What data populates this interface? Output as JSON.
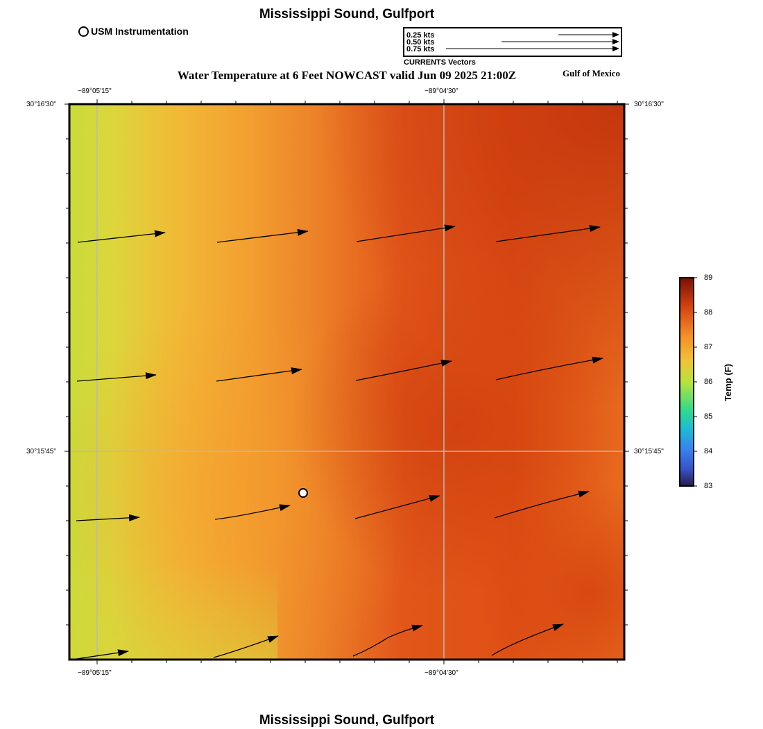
{
  "header": {
    "title": "Mississippi Sound, Gulfport",
    "usm_legend_label": "USM Instrumentation",
    "region_label": "Gulf of Mexico",
    "main_title": "Water Temperature at 6 Feet NOWCAST valid Jun 09 2025 21:00Z"
  },
  "vector_legend": {
    "entries": [
      "0.25 kts",
      "0.50 kts",
      "0.75 kts"
    ],
    "caption": "CURRENTS Vectors"
  },
  "map": {
    "lon_ticks": [
      "−89°05'15\"",
      "−89°04'30\""
    ],
    "lat_ticks": [
      "30°16'30\"",
      "30°15'45\""
    ]
  },
  "colorbar": {
    "title": "Temp (F)",
    "ticks": [
      "89",
      "88",
      "87",
      "86",
      "85",
      "84",
      "83"
    ]
  },
  "footer": {
    "title": "Mississippi Sound, Gulfport"
  }
}
